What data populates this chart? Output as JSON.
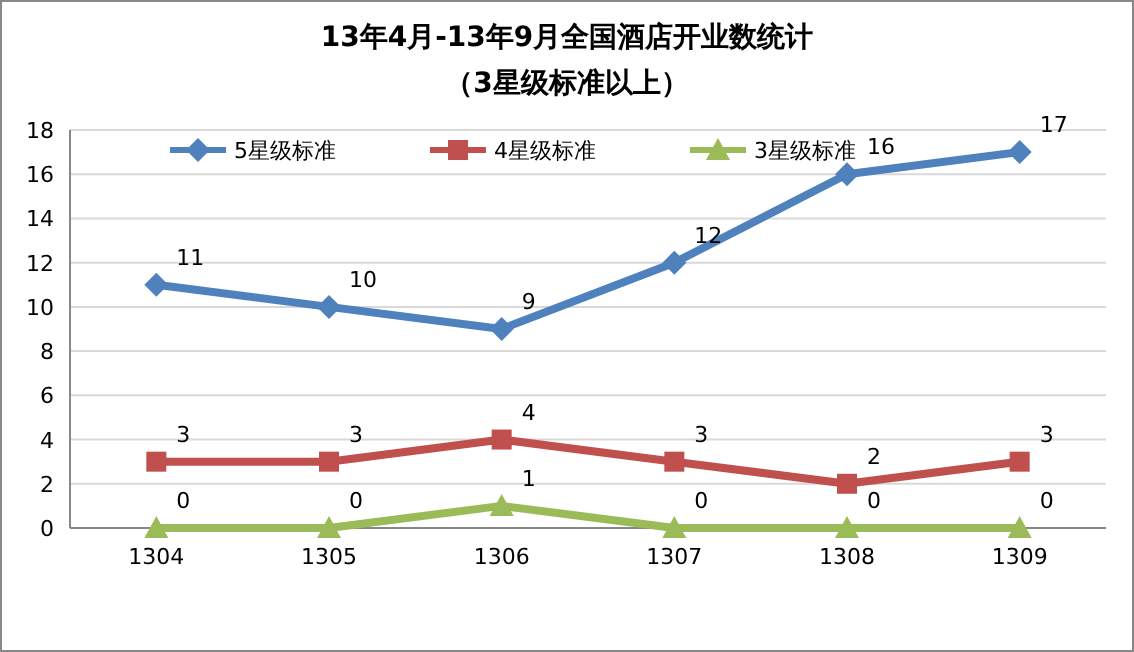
{
  "chart_data": {
    "type": "line",
    "title": "13年4月-13年9月全国酒店开业数统计",
    "subtitle": "（3星级标准以上）",
    "categories": [
      "1304",
      "1305",
      "1306",
      "1307",
      "1308",
      "1309"
    ],
    "series": [
      {
        "name": "5星级标准",
        "color": "#4f81bd",
        "marker": "diamond",
        "values": [
          11,
          10,
          9,
          12,
          16,
          17
        ]
      },
      {
        "name": "4星级标准",
        "color": "#c0504d",
        "marker": "square",
        "values": [
          3,
          3,
          4,
          3,
          2,
          3
        ]
      },
      {
        "name": "3星级标准",
        "color": "#9bbb59",
        "marker": "triangle",
        "values": [
          0,
          0,
          1,
          0,
          0,
          0
        ]
      }
    ],
    "ylim": [
      0,
      18
    ],
    "yticks": [
      0,
      2,
      4,
      6,
      8,
      10,
      12,
      14,
      16,
      18
    ],
    "grid": "y",
    "legend": "top",
    "data_labels": true,
    "line_style": "solid"
  }
}
